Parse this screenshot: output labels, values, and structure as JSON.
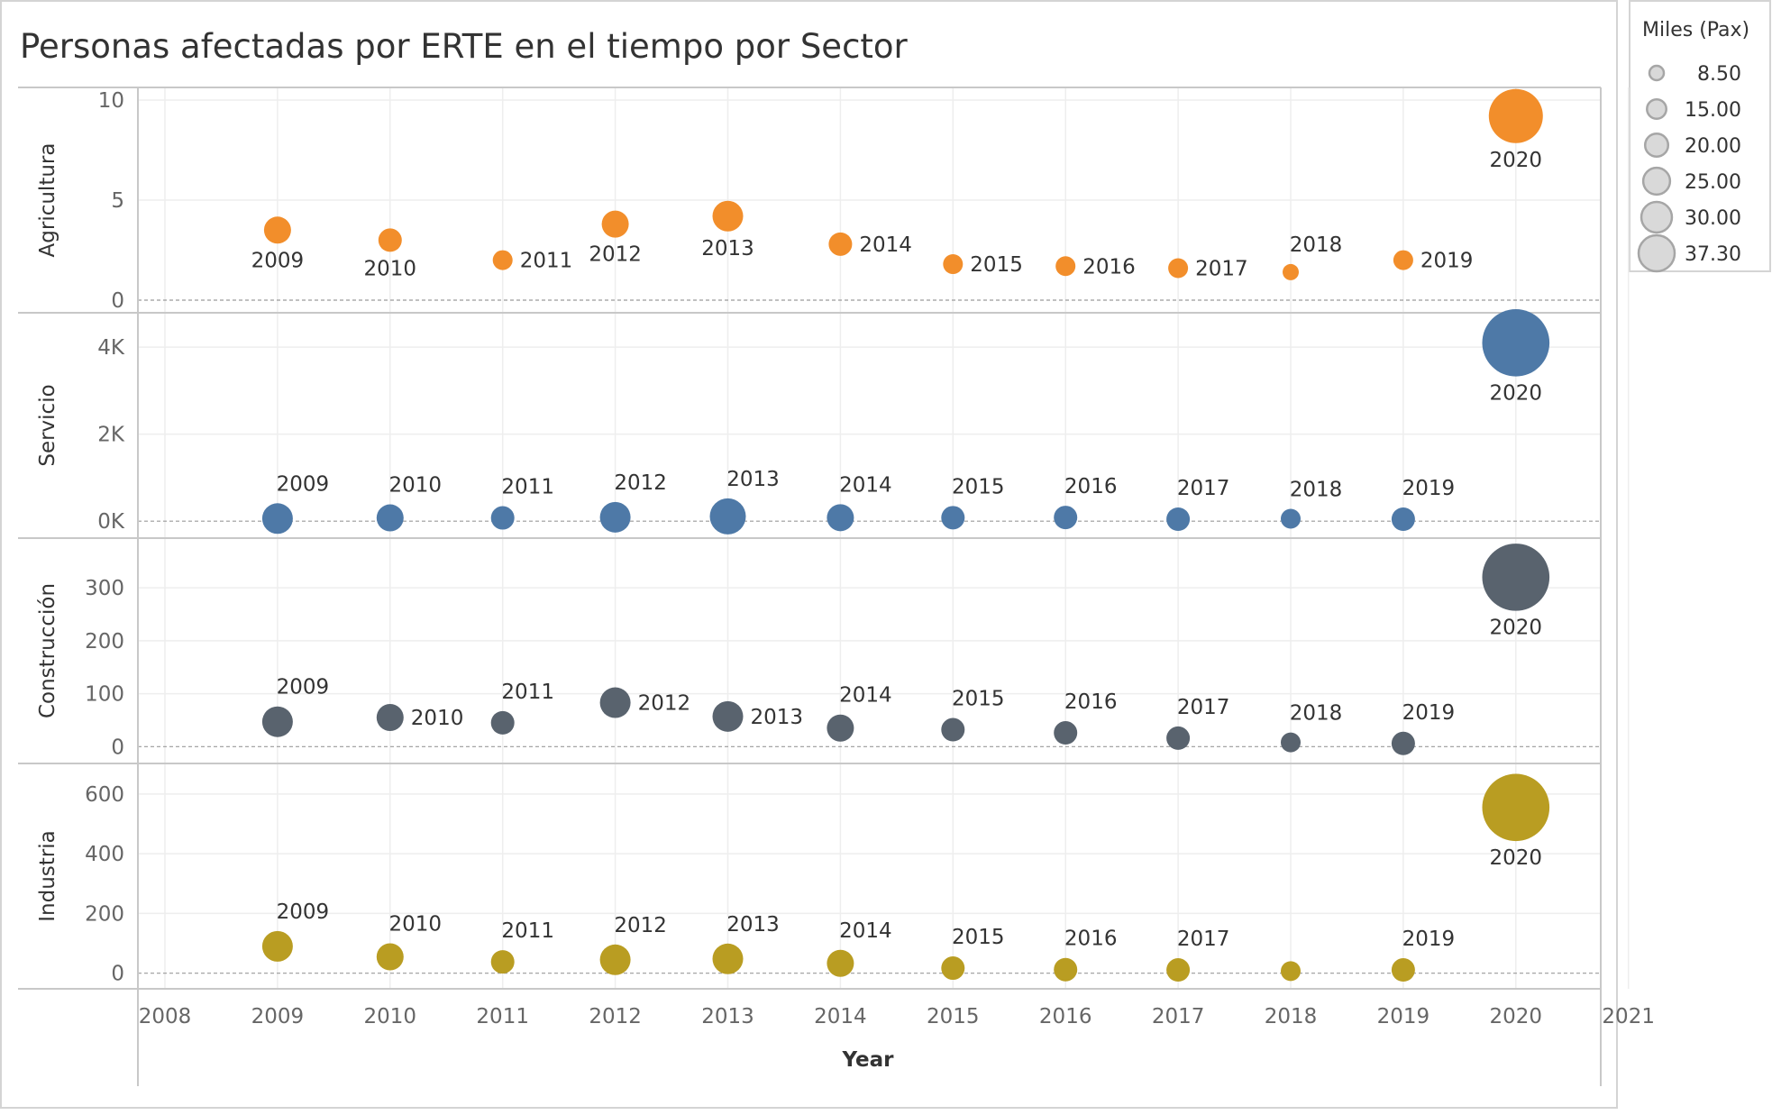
{
  "title": "Personas afectadas por ERTE en el tiempo  por Sector",
  "legend": {
    "title": "Miles (Pax)",
    "items": [
      "8.50",
      "15.00",
      "20.00",
      "25.00",
      "30.00",
      "37.30"
    ],
    "values": [
      8.5,
      15.0,
      20.0,
      25.0,
      30.0,
      37.3
    ]
  },
  "chart_data": {
    "type": "scatter",
    "xlabel": "Year",
    "x_ticks": [
      2008,
      2009,
      2010,
      2011,
      2012,
      2013,
      2014,
      2015,
      2016,
      2017,
      2018,
      2019,
      2020,
      2021
    ],
    "xlim": [
      2008,
      2021
    ],
    "size_encoding": "Miles (Pax)",
    "grid": true,
    "legend_position": "top-right",
    "series": [
      {
        "name": "Agricultura",
        "color": "#f28e2b",
        "ylim": [
          0,
          10
        ],
        "yticks": [
          "0",
          "5",
          "10"
        ],
        "ytick_values": [
          0,
          5,
          10
        ],
        "x": [
          2009,
          2010,
          2011,
          2012,
          2013,
          2014,
          2015,
          2016,
          2017,
          2018,
          2019,
          2020
        ],
        "y": [
          3.5,
          3.0,
          2.0,
          3.8,
          4.2,
          2.8,
          1.8,
          1.7,
          1.6,
          1.4,
          2.0,
          9.2
        ],
        "size": [
          15,
          13,
          11,
          15,
          17,
          13,
          11,
          11,
          11,
          9,
          11,
          30
        ],
        "labels": [
          "2009",
          "2010",
          "2011",
          "2012",
          "2013",
          "2014",
          "2015",
          "2016",
          "2017",
          "2018",
          "2019",
          "2020"
        ],
        "label_pos": [
          "below",
          "below",
          "right",
          "below",
          "below",
          "right",
          "right",
          "right",
          "right",
          "above",
          "right",
          "below"
        ]
      },
      {
        "name": "Servicio",
        "color": "#4e79a7",
        "ylim": [
          -100,
          4500
        ],
        "yticks": [
          "0K",
          "2K",
          "4K"
        ],
        "ytick_values": [
          0,
          2000,
          4000
        ],
        "x": [
          2009,
          2010,
          2011,
          2012,
          2013,
          2014,
          2015,
          2016,
          2017,
          2018,
          2019,
          2020
        ],
        "y": [
          60,
          75,
          75,
          90,
          110,
          80,
          80,
          85,
          45,
          55,
          45,
          4100
        ],
        "size": [
          17,
          15,
          13,
          17,
          20,
          15,
          13,
          13,
          13,
          11,
          13,
          37.3
        ],
        "labels": [
          "2009",
          "2010",
          "2011",
          "2012",
          "2013",
          "2014",
          "2015",
          "2016",
          "2017",
          "2018",
          "2019",
          "2020"
        ],
        "label_pos": [
          "above",
          "above",
          "above",
          "above",
          "above",
          "above",
          "above",
          "above",
          "above",
          "above",
          "above",
          "below"
        ]
      },
      {
        "name": "Construcción",
        "color": "#59636e",
        "ylim": [
          -8,
          370
        ],
        "yticks": [
          "0",
          "100",
          "200",
          "300"
        ],
        "ytick_values": [
          0,
          100,
          200,
          300
        ],
        "x": [
          2009,
          2010,
          2011,
          2012,
          2013,
          2014,
          2015,
          2016,
          2017,
          2018,
          2019,
          2020
        ],
        "y": [
          47,
          55,
          45,
          83,
          57,
          35,
          32,
          26,
          16,
          8,
          6,
          320
        ],
        "size": [
          17,
          15,
          13,
          17,
          17,
          15,
          13,
          13,
          13,
          11,
          13,
          37.3
        ],
        "labels": [
          "2009",
          "2010",
          "2011",
          "2012",
          "2013",
          "2014",
          "2015",
          "2016",
          "2017",
          "2018",
          "2019",
          "2020"
        ],
        "label_pos": [
          "above",
          "right",
          "above",
          "right",
          "right",
          "above",
          "above",
          "above",
          "above",
          "above",
          "above",
          "below"
        ]
      },
      {
        "name": "Industria",
        "color": "#b99d22",
        "ylim": [
          -10,
          660
        ],
        "yticks": [
          "0",
          "200",
          "400",
          "600"
        ],
        "ytick_values": [
          0,
          200,
          400,
          600
        ],
        "x": [
          2009,
          2010,
          2011,
          2012,
          2013,
          2014,
          2015,
          2016,
          2017,
          2018,
          2019,
          2020
        ],
        "y": [
          90,
          55,
          38,
          45,
          48,
          33,
          17,
          12,
          11,
          7,
          11,
          555
        ],
        "size": [
          17,
          15,
          13,
          17,
          17,
          15,
          13,
          13,
          13,
          11,
          13,
          37.3
        ],
        "labels": [
          "2009",
          "2010",
          "2011",
          "2012",
          "2013",
          "2014",
          "2015",
          "2016",
          "2017",
          "",
          "2019",
          "2020"
        ],
        "label_pos": [
          "above",
          "above",
          "above",
          "above",
          "above",
          "above",
          "above",
          "above",
          "above",
          "above",
          "above",
          "below"
        ]
      }
    ]
  }
}
